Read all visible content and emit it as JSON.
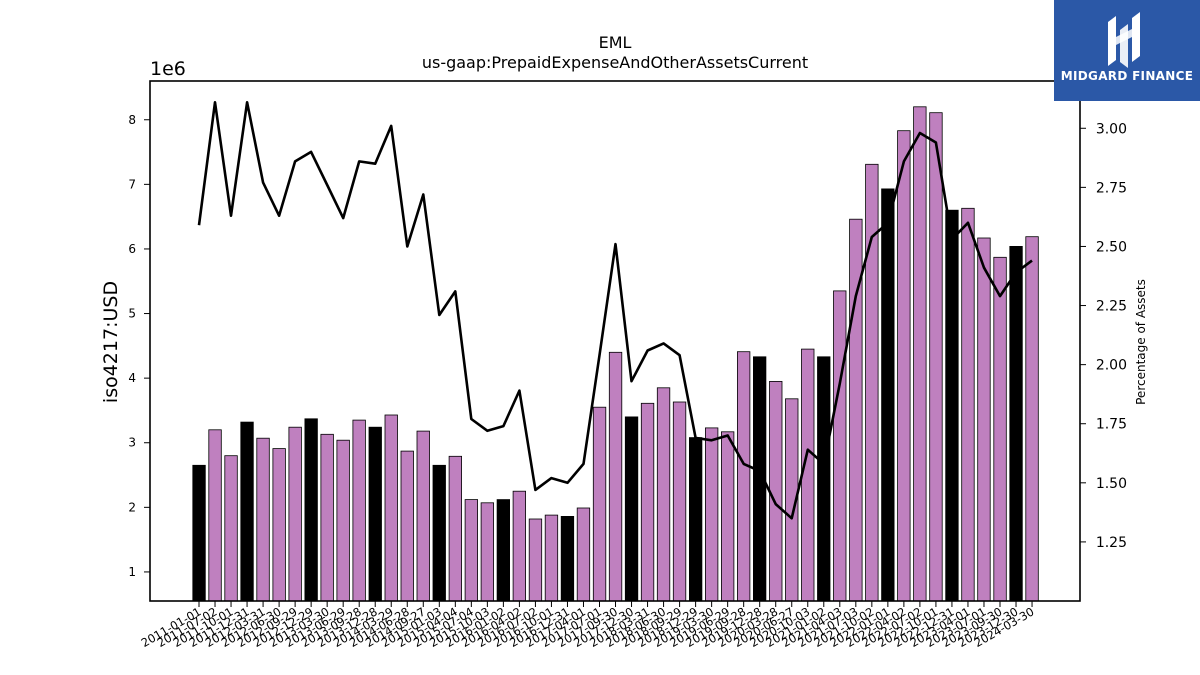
{
  "chart_data": {
    "type": "bar",
    "title": "EML",
    "subtitle": "us-gaap:PrepaidExpenseAndOtherAssetsCurrent",
    "ylabel": "iso4217:USD",
    "ylabel_right": "Percentage of Assets",
    "y_multiplier": "1e6",
    "ylim": [
      0.55,
      8.6
    ],
    "ylim_right": [
      1.0,
      3.2
    ],
    "yticks": [
      "1",
      "2",
      "3",
      "4",
      "5",
      "6",
      "7",
      "8"
    ],
    "yticks_right": [
      "1.25",
      "1.50",
      "1.75",
      "2.00",
      "2.25",
      "2.50",
      "2.75",
      "3.00"
    ],
    "categories": [
      "2011-01-01",
      "2011-07-02",
      "2011-10-01",
      "2011-12-31",
      "2012-03-31",
      "2012-06-30",
      "2012-09-29",
      "2012-12-29",
      "2013-03-30",
      "2013-06-29",
      "2013-09-28",
      "2013-12-28",
      "2014-03-29",
      "2014-06-28",
      "2014-09-27",
      "2015-01-03",
      "2015-04-04",
      "2015-07-04",
      "2015-10-03",
      "2016-01-02",
      "2016-04-02",
      "2016-07-02",
      "2016-10-01",
      "2016-12-31",
      "2017-04-01",
      "2017-07-01",
      "2017-09-30",
      "2017-12-30",
      "2018-03-31",
      "2018-06-30",
      "2018-09-29",
      "2018-12-29",
      "2019-03-30",
      "2019-06-29",
      "2019-09-28",
      "2019-12-28",
      "2020-03-28",
      "2020-06-27",
      "2020-10-03",
      "2021-01-02",
      "2021-04-03",
      "2021-07-03",
      "2021-10-02",
      "2022-01-01",
      "2022-04-02",
      "2022-07-02",
      "2022-10-01",
      "2022-12-31",
      "2023-04-01",
      "2023-07-01",
      "2023-09-30",
      "2023-12-30",
      "2024-03-30"
    ],
    "series": [
      {
        "values": [
          2.65,
          3.2,
          2.8,
          3.32,
          3.07,
          2.91,
          3.24,
          3.37,
          3.13,
          3.04,
          3.35,
          3.24,
          3.43,
          2.87,
          3.18,
          2.65,
          2.79,
          2.12,
          2.07,
          2.12,
          2.25,
          1.82,
          1.88,
          1.86,
          1.99,
          3.55,
          4.4,
          3.4,
          3.61,
          3.85,
          3.63,
          3.08,
          3.23,
          3.17,
          4.41,
          4.33,
          3.95,
          3.68,
          4.45,
          4.33,
          5.35,
          6.46,
          7.31,
          6.93,
          7.83,
          8.2,
          8.11,
          6.6,
          6.63,
          6.17,
          5.87,
          6.04,
          6.19
        ],
        "highlight": [
          true,
          false,
          false,
          true,
          false,
          false,
          false,
          true,
          false,
          false,
          false,
          true,
          false,
          false,
          false,
          true,
          false,
          false,
          false,
          true,
          false,
          false,
          false,
          true,
          false,
          false,
          false,
          true,
          false,
          false,
          false,
          true,
          false,
          false,
          false,
          true,
          false,
          false,
          false,
          true,
          false,
          false,
          false,
          true,
          false,
          false,
          false,
          true,
          false,
          false,
          false,
          true,
          false
        ]
      },
      {
        "name": "Percentage of Assets",
        "values": [
          2.59,
          3.11,
          2.63,
          3.11,
          2.77,
          2.63,
          2.86,
          2.9,
          2.76,
          2.62,
          2.86,
          2.85,
          3.01,
          2.5,
          2.72,
          2.21,
          2.31,
          1.77,
          1.72,
          1.74,
          1.89,
          1.47,
          1.52,
          1.5,
          1.58,
          2.04,
          2.51,
          1.93,
          2.06,
          2.09,
          2.04,
          1.69,
          1.68,
          1.7,
          1.58,
          1.55,
          1.41,
          1.35,
          1.64,
          1.58,
          1.92,
          2.29,
          2.54,
          2.6,
          2.86,
          2.98,
          2.94,
          2.53,
          2.6,
          2.41,
          2.29,
          2.39,
          2.44
        ]
      }
    ],
    "colors": {
      "bar": "#bf80bf",
      "bar_highlight": "#000000",
      "line": "#000000"
    },
    "legend": "none",
    "grid": false
  },
  "logo": {
    "text": "MIDGARD FINANCE",
    "background": "#2b58a7"
  }
}
